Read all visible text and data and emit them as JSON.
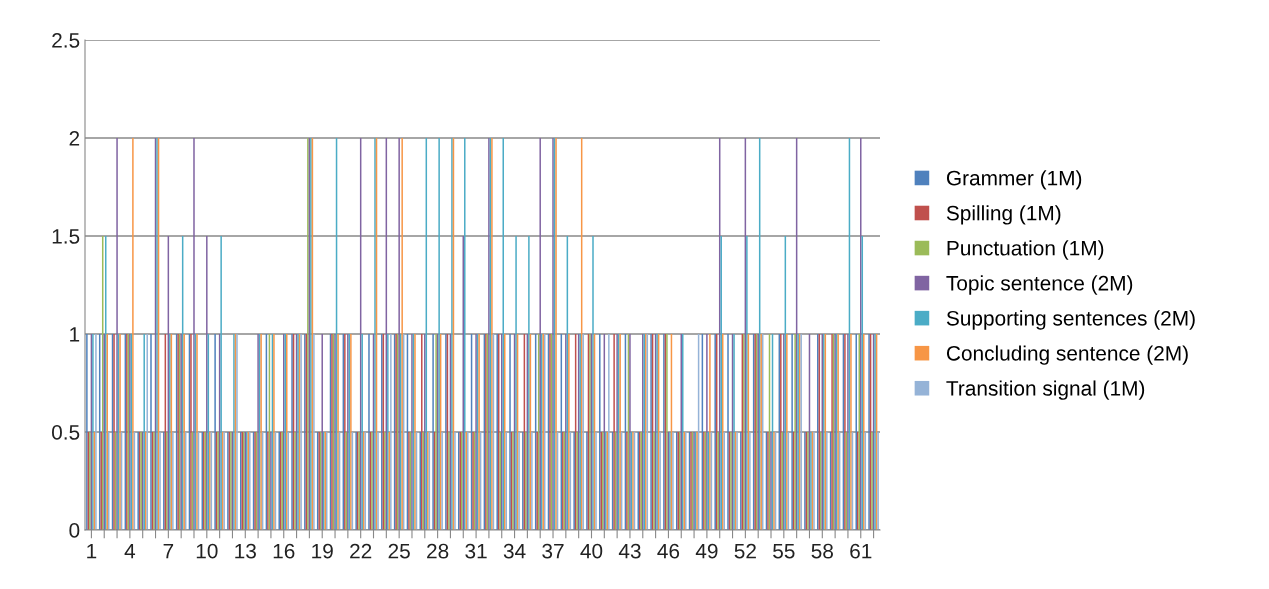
{
  "chart_data": {
    "type": "bar",
    "categories": [
      "1",
      null,
      null,
      "4",
      null,
      null,
      "7",
      null,
      null,
      "10",
      null,
      null,
      "13",
      null,
      null,
      "16",
      null,
      null,
      "19",
      null,
      null,
      "22",
      null,
      null,
      "25",
      null,
      null,
      "28",
      null,
      null,
      "31",
      null,
      null,
      "34",
      null,
      null,
      "37",
      null,
      null,
      "40",
      null,
      null,
      "43",
      null,
      null,
      "46",
      null,
      null,
      "49",
      null,
      null,
      "52",
      null,
      null,
      "55",
      null,
      null,
      "58",
      null,
      null,
      "61",
      null
    ],
    "series": [
      {
        "name": "Grammer (1M)",
        "color": "#4f81bd",
        "values": [
          1,
          1,
          1,
          1,
          0.5,
          1,
          0.5,
          1,
          1,
          0.5,
          1,
          0.5,
          0.5,
          0.5,
          1,
          0.5,
          1,
          1,
          0.5,
          1,
          1,
          0.5,
          1,
          1,
          1,
          1,
          0.5,
          1,
          1,
          0.5,
          1,
          1,
          1,
          1,
          0.5,
          1,
          1,
          1,
          0.5,
          0.5,
          1,
          0.5,
          1,
          0.5,
          1,
          1,
          0.5,
          0.5,
          1,
          1,
          1,
          0.5,
          1,
          0.5,
          1,
          1,
          0.5,
          1,
          0.5,
          1,
          1,
          1
        ]
      },
      {
        "name": "Spilling (1M)",
        "color": "#c0504d",
        "values": [
          0.5,
          0.5,
          1,
          1,
          0.5,
          0.5,
          1,
          1,
          1,
          0.5,
          0.5,
          0.5,
          0.5,
          0.5,
          0.5,
          0.5,
          1,
          1,
          0.5,
          1,
          1,
          0.5,
          0.5,
          1,
          1,
          0.5,
          1,
          0.5,
          1,
          0.5,
          0.5,
          1,
          1,
          0.5,
          1,
          0.5,
          1,
          0.5,
          1,
          1,
          0.5,
          1,
          0.5,
          0.5,
          1,
          1,
          0.5,
          0.5,
          0.5,
          1,
          0.5,
          1,
          1,
          0.5,
          1,
          0.5,
          0.5,
          1,
          1,
          1,
          0.5,
          1
        ]
      },
      {
        "name": "Punctuation (1M)",
        "color": "#9bbb59",
        "values": [
          0.5,
          1.5,
          0.5,
          1,
          0.5,
          0.5,
          0.5,
          1,
          0.5,
          0.5,
          0.5,
          0.5,
          0.5,
          0.5,
          1,
          0.5,
          0.5,
          2,
          0.5,
          1,
          0.5,
          0.5,
          0.5,
          0.5,
          1,
          0.5,
          0.5,
          1,
          0.5,
          0.5,
          0.5,
          1,
          0.5,
          0.5,
          0.5,
          1,
          1,
          0.5,
          0.5,
          1,
          0.5,
          0.5,
          1,
          0.5,
          0.5,
          1,
          0.5,
          0.5,
          0.5,
          0.5,
          0.5,
          1,
          1,
          1,
          0.5,
          1,
          0.5,
          0.5,
          1,
          0.5,
          1,
          0.5
        ]
      },
      {
        "name": "Topic sentence (2M)",
        "color": "#8064a2",
        "values": [
          1,
          1,
          2,
          1,
          0.5,
          2,
          1.5,
          1,
          2,
          1.5,
          1,
          0.5,
          0.5,
          1,
          0.5,
          1,
          1,
          2,
          1,
          1,
          1,
          2,
          1,
          2,
          2,
          1,
          1,
          1,
          1,
          1.5,
          1,
          2,
          1,
          1,
          1,
          2,
          2,
          1,
          1,
          1,
          1,
          1,
          1,
          1,
          1,
          0.5,
          1,
          0.5,
          1,
          2,
          1,
          2,
          1,
          0.5,
          1,
          2,
          1,
          1,
          1,
          1,
          2,
          1
        ]
      },
      {
        "name": "Supporting sentences (2M)",
        "color": "#4bacc6",
        "values": [
          1,
          1.5,
          1,
          1,
          1,
          2,
          1,
          1.5,
          1,
          1,
          1.5,
          1,
          0.5,
          1,
          1,
          1,
          1,
          2,
          0.5,
          2,
          1,
          1,
          2,
          1,
          1,
          1,
          2,
          2,
          2,
          2,
          1,
          2,
          2,
          1.5,
          1.5,
          1,
          2,
          1.5,
          1,
          1.5,
          0.5,
          1,
          0.5,
          1,
          1,
          0.5,
          1,
          0.5,
          0.5,
          1.5,
          1,
          1.5,
          2,
          1,
          1.5,
          1,
          0.5,
          1,
          1,
          2,
          1.5,
          1
        ]
      },
      {
        "name": "Concluding sentence (2M)",
        "color": "#f79646",
        "values": [
          0.5,
          1,
          1,
          2,
          0.5,
          2,
          1,
          1,
          1,
          0.5,
          0.5,
          1,
          0.5,
          1,
          1,
          1,
          1,
          2,
          0.5,
          1,
          1,
          0.5,
          2,
          0.5,
          2,
          1,
          0.5,
          1,
          2,
          0.5,
          1,
          2,
          1,
          1,
          1,
          1,
          2,
          1,
          2,
          1,
          0.5,
          1,
          0.5,
          1,
          1,
          1,
          0.5,
          0.5,
          1,
          1,
          0.5,
          1,
          1,
          0.5,
          1,
          1,
          0.5,
          1,
          1,
          1,
          1,
          1
        ]
      },
      {
        "name": "Transition signal (1M)",
        "color": "#95b3d7",
        "values": [
          1,
          0.5,
          0.5,
          0.5,
          1,
          0.5,
          0.5,
          0.5,
          0.5,
          0.5,
          0.5,
          1,
          0.5,
          0.5,
          0.5,
          0.5,
          1,
          1,
          0.5,
          0.5,
          0.5,
          0.5,
          0.5,
          1,
          1,
          0.5,
          0.5,
          0.5,
          0.5,
          0.5,
          0.5,
          1,
          0.5,
          0.5,
          0.5,
          1,
          0.5,
          0.5,
          1,
          0.5,
          1,
          0.5,
          0.5,
          1,
          0.5,
          0.5,
          0.5,
          1,
          0.5,
          0.5,
          0.5,
          0.5,
          1,
          0.5,
          0.5,
          1,
          0.5,
          0.5,
          0.5,
          0.5,
          0.5,
          0.5
        ]
      }
    ],
    "ylim": [
      0,
      2.5
    ],
    "yticks": [
      0,
      0.5,
      1,
      1.5,
      2,
      2.5
    ],
    "grid": "y",
    "legend": "right"
  }
}
